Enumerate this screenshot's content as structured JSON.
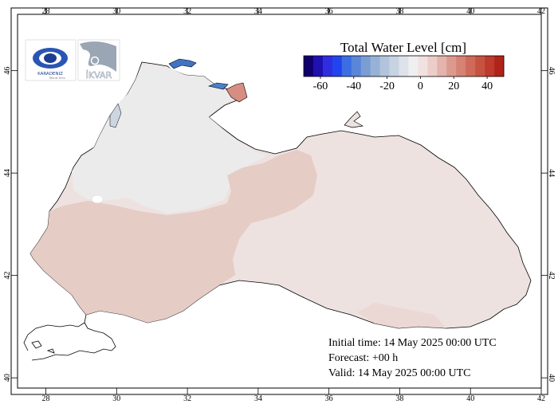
{
  "legend": {
    "title": "Total Water Level [cm]",
    "tick_labels": [
      "-60",
      "-40",
      "-20",
      "0",
      "20",
      "40"
    ],
    "colors": [
      "#10006e",
      "#1f10b0",
      "#2e2ee0",
      "#2244ee",
      "#3b6ee3",
      "#5a86da",
      "#7a9dd4",
      "#96b2d6",
      "#b1c4dc",
      "#c8d3e2",
      "#dde2ea",
      "#efefef",
      "#f0e2e0",
      "#eccdc8",
      "#e4b3ab",
      "#dc9a8f",
      "#d68274",
      "#cf6a5a",
      "#c65342",
      "#bd3a2c",
      "#b02318"
    ]
  },
  "axes": {
    "lon_labels": [
      "28",
      "30",
      "32",
      "34",
      "36",
      "38",
      "40",
      "42"
    ],
    "lat_labels": [
      "40",
      "42",
      "44",
      "46"
    ]
  },
  "info": {
    "initial": "Initial time: 14 May 2025 00:00 UTC",
    "forecast": "Forecast: +00 h",
    "valid": "Valid: 14 May 2025 00:00 UTC"
  },
  "logos": {
    "left_text": "KARADENIZ",
    "left_subtext": "Teknik Univ.",
    "right_text": "İKVAR"
  },
  "colors": {
    "sea_base": "#ede2e0",
    "sea_light": "#ecebec",
    "sea_warm": "#e5cdc6",
    "coast": "#000000"
  }
}
